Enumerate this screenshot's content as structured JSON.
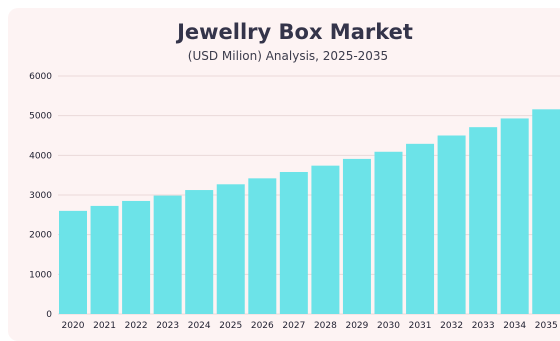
{
  "chart_data": {
    "type": "bar",
    "title": "Jewellry Box Market",
    "subtitle": "(USD Milion) Analysis, 2025-2035",
    "xlabel": "",
    "ylabel": "",
    "categories": [
      "2020",
      "2021",
      "2022",
      "2023",
      "2024",
      "2025",
      "2026",
      "2027",
      "2028",
      "2029",
      "2030",
      "2031",
      "2032",
      "2033",
      "2034",
      "2035"
    ],
    "values": [
      2600,
      2725,
      2850,
      2985,
      3125,
      3270,
      3420,
      3580,
      3740,
      3910,
      4090,
      4290,
      4500,
      4710,
      4930,
      5160
    ],
    "ylim": [
      0,
      6000
    ],
    "yticks": [
      "0",
      "1000",
      "2000",
      "3000",
      "4000",
      "5000",
      "6000"
    ],
    "grid": true,
    "legend": "none",
    "colors": {
      "bar": "#6ce3e8",
      "background": "#fdf3f3",
      "grid": "#ead9d9",
      "title": "#34344a"
    }
  }
}
